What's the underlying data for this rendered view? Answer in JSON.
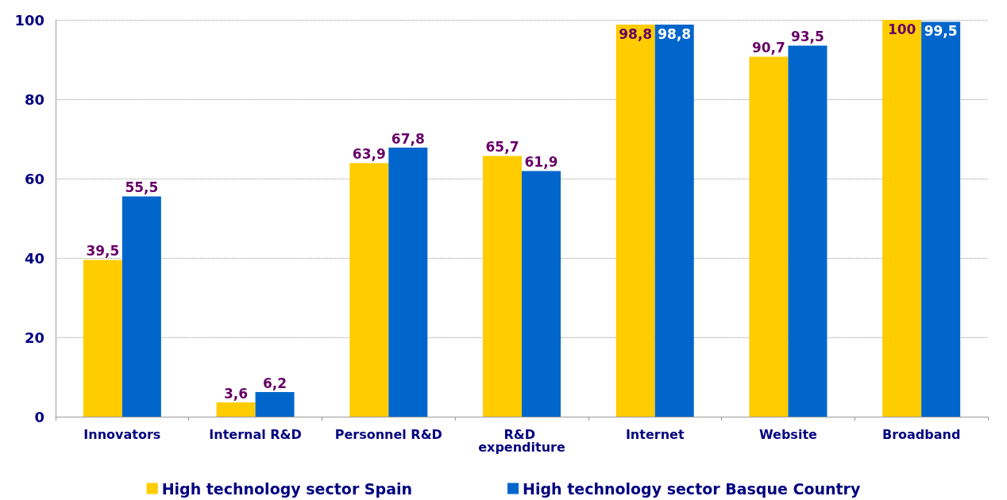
{
  "chart_data": {
    "type": "bar",
    "categories": [
      "Innovators",
      "Internal R&D",
      "Personnel R&D",
      "R&D expenditure",
      "Internet",
      "Website",
      "Broadband"
    ],
    "series": [
      {
        "name": "High technology sector Spain",
        "color": "#ffcc00",
        "values": [
          39.5,
          3.6,
          63.9,
          65.7,
          98.8,
          90.7,
          100
        ],
        "value_labels": [
          "39,5",
          "3,6",
          "63,9",
          "65,7",
          "98,8",
          "90,7",
          "100"
        ]
      },
      {
        "name": "High technology sector Basque Country",
        "color": "#0066cc",
        "values": [
          55.5,
          6.2,
          67.8,
          61.9,
          98.8,
          93.5,
          99.5
        ],
        "value_labels": [
          "55,5",
          "6,2",
          "67,8",
          "61,9",
          "98,8",
          "93,5",
          "99,5"
        ]
      }
    ],
    "ylim": [
      0,
      100
    ],
    "yticks": [
      0,
      20,
      40,
      60,
      80,
      100
    ],
    "grid": "y",
    "legend": "bottom"
  }
}
